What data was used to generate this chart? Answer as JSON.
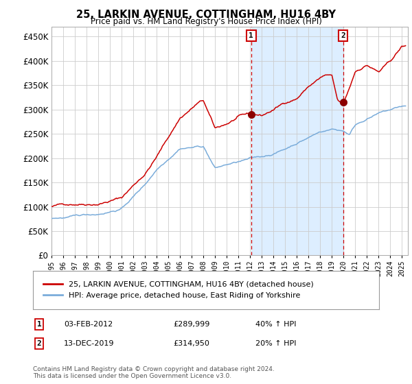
{
  "title": "25, LARKIN AVENUE, COTTINGHAM, HU16 4BY",
  "subtitle": "Price paid vs. HM Land Registry's House Price Index (HPI)",
  "legend_entry1": "25, LARKIN AVENUE, COTTINGHAM, HU16 4BY (detached house)",
  "legend_entry2": "HPI: Average price, detached house, East Riding of Yorkshire",
  "annotation1_label": "1",
  "annotation1_date": "03-FEB-2012",
  "annotation1_price": "£289,999",
  "annotation1_hpi": "40% ↑ HPI",
  "annotation2_label": "2",
  "annotation2_date": "13-DEC-2019",
  "annotation2_price": "£314,950",
  "annotation2_hpi": "20% ↑ HPI",
  "footer": "Contains HM Land Registry data © Crown copyright and database right 2024.\nThis data is licensed under the Open Government Licence v3.0.",
  "red_color": "#cc0000",
  "blue_color": "#7aacda",
  "bg_color": "#ddeeff",
  "grid_color": "#cccccc",
  "ylim": [
    0,
    470000
  ],
  "yticks": [
    0,
    50000,
    100000,
    150000,
    200000,
    250000,
    300000,
    350000,
    400000,
    450000
  ],
  "purchase1_year": 2012.09,
  "purchase1_value": 289999,
  "purchase2_year": 2019.95,
  "purchase2_value": 314950,
  "xmin": 1995,
  "xmax": 2025.5
}
